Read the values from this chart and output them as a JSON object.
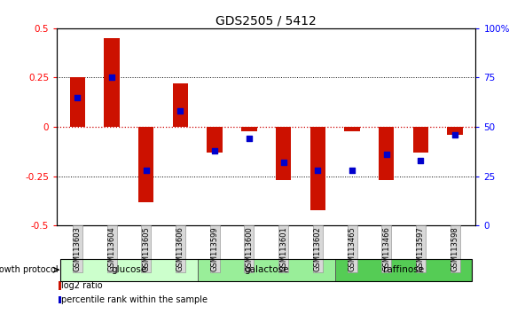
{
  "title": "GDS2505 / 5412",
  "samples": [
    "GSM113603",
    "GSM113604",
    "GSM113605",
    "GSM113606",
    "GSM113599",
    "GSM113600",
    "GSM113601",
    "GSM113602",
    "GSM113465",
    "GSM113466",
    "GSM113597",
    "GSM113598"
  ],
  "log2_ratio": [
    0.25,
    0.45,
    -0.38,
    0.22,
    -0.13,
    -0.02,
    -0.27,
    -0.42,
    -0.02,
    -0.27,
    -0.13,
    -0.04
  ],
  "percentile_rank": [
    65,
    75,
    28,
    58,
    38,
    44,
    32,
    28,
    28,
    36,
    33,
    46
  ],
  "groups": [
    {
      "name": "glucose",
      "color": "#ccffcc",
      "start": 0,
      "end": 4
    },
    {
      "name": "galactose",
      "color": "#99ee99",
      "start": 4,
      "end": 8
    },
    {
      "name": "raffinose",
      "color": "#55cc55",
      "start": 8,
      "end": 12
    }
  ],
  "bar_color": "#cc1100",
  "dot_color": "#0000cc",
  "ylim_left": [
    -0.5,
    0.5
  ],
  "yticks_left": [
    -0.5,
    -0.25,
    0,
    0.25,
    0.5
  ],
  "ylim_right": [
    0,
    100
  ],
  "yticks_right": [
    0,
    25,
    50,
    75,
    100
  ],
  "background_color": "#ffffff",
  "hline_color": "#cc0000",
  "grid_color": "#000000",
  "bar_width": 0.45,
  "dot_size": 18,
  "dot_marker": "s"
}
